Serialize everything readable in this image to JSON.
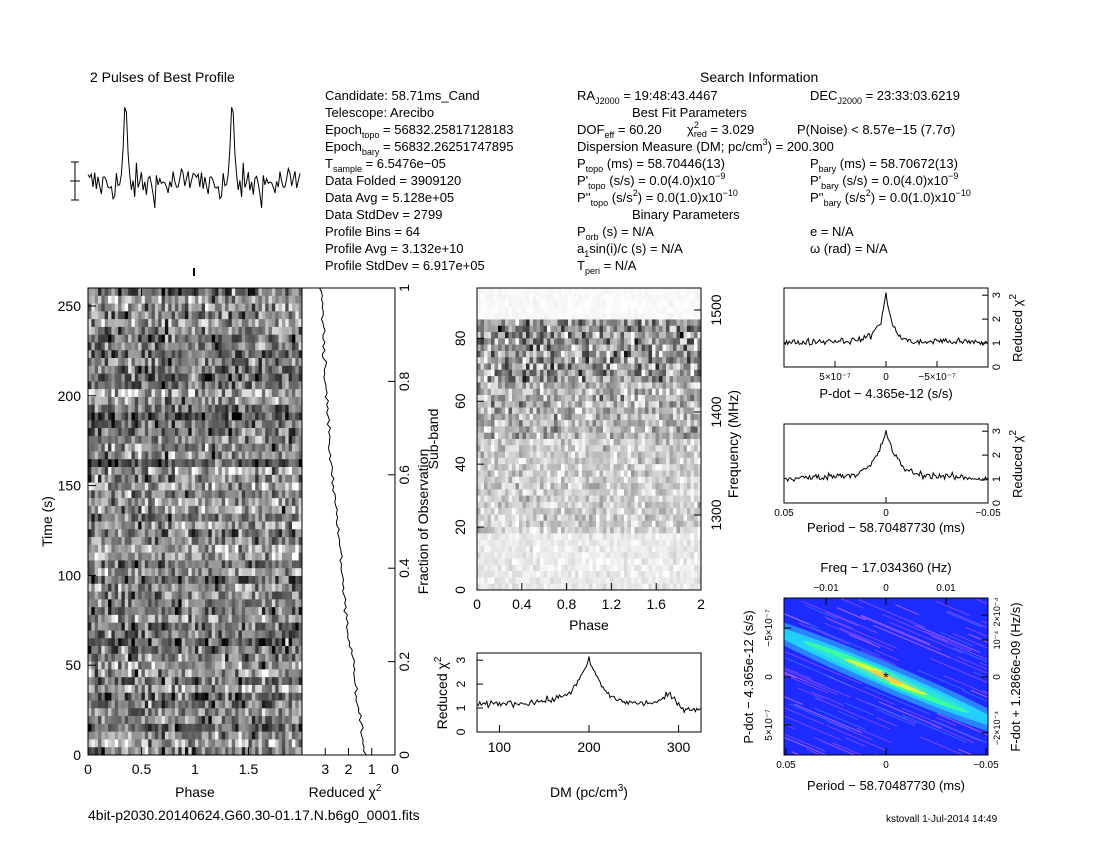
{
  "page": {
    "footer_file": "4bit-p2030.20140624.G60.30-01.17.N.b6g0_0001.fits",
    "footer_user": "kstovall   1-Jul-2014 14:49"
  },
  "header": {
    "profile_title": "2 Pulses of Best Profile",
    "search_title": "Search Information",
    "best_fit_title": "Best Fit Parameters",
    "binary_title": "Binary Parameters",
    "col1": [
      {
        "label": "Candidate:  58.71ms_Cand",
        "sub": "",
        "rest": ""
      },
      {
        "label": "Telescope:  Arecibo",
        "sub": "",
        "rest": ""
      },
      {
        "label": "Epoch",
        "sub": "topo",
        "rest": " = 56832.25817128183"
      },
      {
        "label": "Epoch",
        "sub": "bary",
        "rest": " = 56832.26251747895"
      },
      {
        "label": "T",
        "sub": "sample",
        "rest": "          =  6.5476e−05"
      },
      {
        "label": "Data Folded      =  3909120",
        "sub": "",
        "rest": ""
      },
      {
        "label": "Data Avg          =  5.128e+05",
        "sub": "",
        "rest": ""
      },
      {
        "label": "Data StdDev      =  2799",
        "sub": "",
        "rest": ""
      },
      {
        "label": "Profile Bins      =  64",
        "sub": "",
        "rest": ""
      },
      {
        "label": "Profile Avg       =  3.132e+10",
        "sub": "",
        "rest": ""
      },
      {
        "label": "Profile StdDev  =  6.917e+05",
        "sub": "",
        "rest": ""
      }
    ],
    "ra": {
      "label": "RA",
      "sub": "J2000",
      "rest": " = 19:48:43.4467"
    },
    "dec": {
      "label": "DEC",
      "sub": "J2000",
      "rest": " = 23:33:03.6219"
    },
    "dof": {
      "label": "DOF",
      "sub": "eff",
      "rest": " = 60.20"
    },
    "chi": {
      "label": "χ",
      "sup": "2",
      "sub": "red",
      "rest": " = 3.029"
    },
    "pnoise": "P(Noise) < 8.57e−15   (7.7σ)",
    "dm": "Dispersion Measure (DM; pc/cm",
    "dm_sup": "3",
    "dm_rest": ") = 200.300",
    "ptopo": {
      "label": "P",
      "sub": "topo",
      "rest": " (ms)     =  58.70446(13)"
    },
    "pbary": {
      "label": "P",
      "sub": "bary",
      "rest": " (ms)  =  58.70672(13)"
    },
    "pdtopo": {
      "label": "P'",
      "sub": "topo",
      "rest": " (s/s) = 0.0(4.0)x10",
      "sup": "−9"
    },
    "pdbary": {
      "label": "P'",
      "sub": "bary",
      "rest": " (s/s) = 0.0(4.0)x10",
      "sup": "−9"
    },
    "pddtopo": {
      "label": "P''",
      "sub": "topo",
      "rest": " (s/s",
      "sup2": "2",
      "rest2": ") = 0.0(1.0)x10",
      "sup": "−10"
    },
    "pddbary": {
      "label": "P''",
      "sub": "bary",
      "rest": " (s/s",
      "sup2": "2",
      "rest2": ") = 0.0(1.0)x10",
      "sup": "−10"
    },
    "porb": {
      "label": "P",
      "sub": "orb",
      "rest": " (s) = N/A"
    },
    "asini": {
      "label": "a",
      "sub": "1",
      "rest": "sin(i)/c (s) = N/A"
    },
    "tperi": {
      "label": "T",
      "sub": "peri",
      "rest": " = N/A"
    },
    "ecc": "e = N/A",
    "omega": "ω (rad) = N/A"
  },
  "chart_data": [
    {
      "type": "line",
      "name_id": "pulse-profile",
      "title": "2 Pulses of Best Profile",
      "x": "phase 0–2 (two pulse periods, 64 bins each)",
      "peaks_at_phase": [
        0.35,
        1.35
      ],
      "grid": false
    },
    {
      "type": "heatmap",
      "name_id": "time-phase",
      "xlabel": "Phase",
      "ylabel": "Time (s)",
      "xlim": [
        0,
        2
      ],
      "ylim": [
        0,
        260
      ],
      "xticks": [
        "0",
        "0.5",
        "1",
        "1.5"
      ],
      "yticks": [
        "0",
        "50",
        "100",
        "150",
        "200",
        "250"
      ],
      "colormap": "grayscale"
    },
    {
      "type": "line",
      "name_id": "time-chi2",
      "xlabel": "Reduced χ",
      "xlabel_sup": "2",
      "ylabel": "Fraction of Observation",
      "xlim": [
        4,
        0
      ],
      "ylim": [
        0,
        1
      ],
      "xticks": [
        "3",
        "2",
        "1",
        "0"
      ],
      "yticks": [
        "0",
        "0.2",
        "0.4",
        "0.6",
        "0.8",
        "1"
      ],
      "x": [
        1.3,
        1.4,
        1.6,
        1.7,
        1.8,
        2.0,
        2.1,
        2.2,
        2.3,
        2.4,
        2.5,
        2.6,
        2.7,
        2.8,
        2.85,
        2.9,
        3.0,
        3.05,
        3.1,
        3.1,
        3.2
      ],
      "y": [
        0,
        0.05,
        0.1,
        0.15,
        0.2,
        0.25,
        0.3,
        0.35,
        0.4,
        0.45,
        0.5,
        0.55,
        0.6,
        0.65,
        0.7,
        0.75,
        0.8,
        0.85,
        0.9,
        0.95,
        1.0
      ]
    },
    {
      "type": "heatmap",
      "name_id": "phase-subband",
      "xlabel": "Phase",
      "ylabel": "Sub-band",
      "ylabel_right": "Frequency (MHz)",
      "xlim": [
        0,
        2
      ],
      "ylim": [
        0,
        96
      ],
      "xticks": [
        "0",
        "0.4",
        "0.8",
        "1.2",
        "1.6",
        "2"
      ],
      "yticks": [
        "0",
        "20",
        "40",
        "60",
        "80"
      ],
      "yticks_right": [
        "1300",
        "1400",
        "1500"
      ],
      "colormap": "grayscale"
    },
    {
      "type": "line",
      "name_id": "dm-chi2",
      "xlabel": "DM (pc/cm",
      "xlabel_sup": "3",
      "xlabel_end": ")",
      "ylabel": "Reduced χ",
      "ylabel_sup": "2",
      "xlim": [
        75,
        325
      ],
      "ylim": [
        0,
        3.3
      ],
      "xticks": [
        "100",
        "200",
        "300"
      ],
      "yticks": [
        "0",
        "1",
        "2",
        "3"
      ],
      "x": [
        75,
        100,
        125,
        150,
        165,
        180,
        190,
        195,
        200,
        205,
        210,
        220,
        235,
        250,
        265,
        280,
        290,
        300,
        310,
        325
      ],
      "y": [
        1.1,
        1.2,
        1.2,
        1.3,
        1.4,
        1.7,
        2.2,
        2.6,
        3.0,
        2.6,
        2.2,
        1.6,
        1.3,
        1.2,
        1.2,
        1.3,
        1.6,
        1.1,
        0.95,
        1.0
      ]
    },
    {
      "type": "line",
      "name_id": "pdot-chi2",
      "xlabel": "P-dot − 4.365e-12 (s/s)",
      "ylabel": "Reduced χ",
      "ylabel_sup": "2",
      "ylim": [
        0,
        3.3
      ],
      "xticks": [
        "5×10⁻⁷",
        "0",
        "−5×10⁻⁷"
      ],
      "yticks": [
        "0",
        "1",
        "2",
        "3"
      ],
      "x": [
        -1.0,
        -0.5,
        -0.3,
        -0.15,
        -0.05,
        0,
        0.05,
        0.15,
        0.3,
        0.5,
        1.0
      ],
      "y": [
        1.0,
        1.1,
        1.1,
        1.3,
        1.9,
        3.0,
        1.9,
        1.2,
        1.0,
        1.1,
        1.0
      ]
    },
    {
      "type": "line",
      "name_id": "period-chi2",
      "xlabel": "Period − 58.70487730 (ms)",
      "ylabel": "Reduced χ",
      "ylabel_sup": "2",
      "xlim": [
        0.05,
        -0.05
      ],
      "ylim": [
        0,
        3.3
      ],
      "xticks": [
        "0.05",
        "0",
        "−0.05"
      ],
      "yticks": [
        "0",
        "1",
        "2",
        "3"
      ],
      "x": [
        0.05,
        0.03,
        0.015,
        0.008,
        0.003,
        0,
        -0.003,
        -0.008,
        -0.015,
        -0.03,
        -0.05
      ],
      "y": [
        1.0,
        1.1,
        1.2,
        1.5,
        2.2,
        3.0,
        2.2,
        1.5,
        1.2,
        1.1,
        1.0
      ]
    },
    {
      "type": "heatmap",
      "name_id": "period-pdot",
      "title": "Freq − 17.034360 (Hz)",
      "xlabel": "Period − 58.70487730 (ms)",
      "ylabel": "P-dot − 4.365e-12 (s/s)",
      "ylabel_right": "F-dot + 1.2866e-09 (Hz/s)",
      "xticks": [
        "0.05",
        "0",
        "−0.05"
      ],
      "xticks_top": [
        "−0.01",
        "0",
        "0.01"
      ],
      "yticks": [
        "5×10⁻⁷",
        "0",
        "−5×10⁻⁷"
      ],
      "yticks_right": [
        "−2×10⁻⁴",
        "0",
        "10⁻⁴",
        "2×10⁻⁴"
      ],
      "colormap": "rainbow"
    }
  ]
}
